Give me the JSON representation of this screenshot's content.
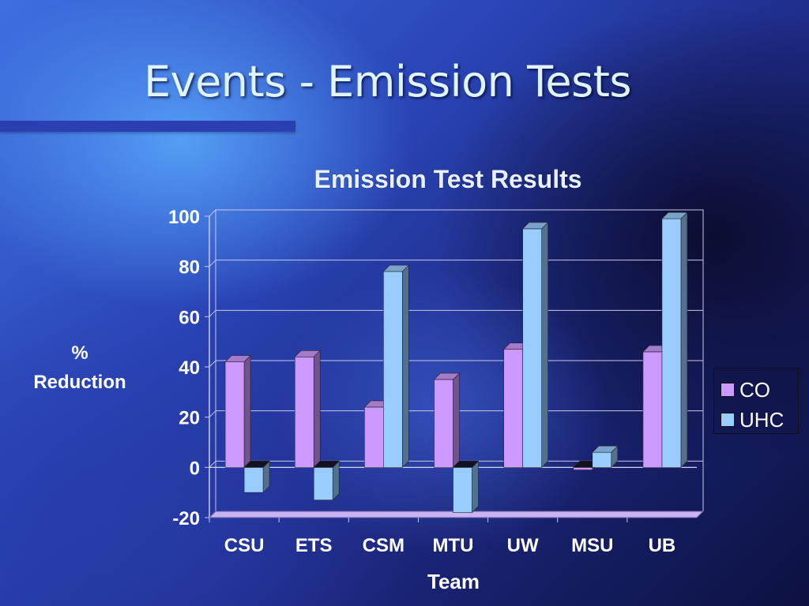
{
  "slide": {
    "title": "Events - Emission Tests"
  },
  "colors": {
    "co": "#cc99ff",
    "uhc": "#99ccff",
    "text": "#ffffff",
    "gridline": "#c8c8e8",
    "floor": "#c8b4f0"
  },
  "chart_data": {
    "type": "bar",
    "title": "Emission Test Results",
    "xlabel": "Team",
    "ylabel": "% Reduction",
    "ylim": [
      -20,
      100
    ],
    "yticks": [
      100,
      80,
      60,
      40,
      20,
      0,
      -20
    ],
    "grid": true,
    "legend_position": "right",
    "categories": [
      "CSU",
      "ETS",
      "CSM",
      "MTU",
      "UW",
      "MSU",
      "UB"
    ],
    "series": [
      {
        "name": "CO",
        "values": [
          42,
          44,
          24,
          35,
          47,
          -1,
          46
        ]
      },
      {
        "name": "UHC",
        "values": [
          -10,
          -13,
          78,
          -18,
          95,
          6,
          99
        ]
      }
    ]
  }
}
